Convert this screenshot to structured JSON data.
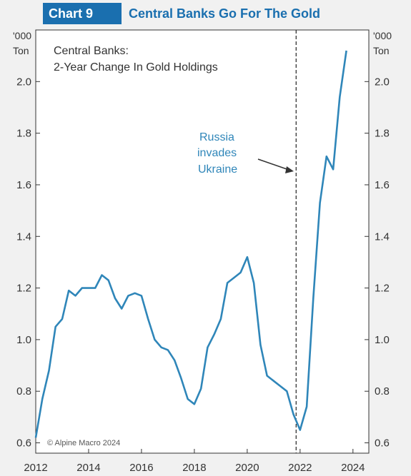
{
  "header": {
    "badge": "Chart 9",
    "title": "Central Banks Go For The Gold"
  },
  "colors": {
    "accent": "#1a6faf",
    "line": "#2f86b9",
    "annotation": "#2f86b9"
  },
  "chart_data": {
    "type": "line",
    "title": "Central Banks Go For The Gold",
    "subtitle": [
      "Central Banks:",
      "2-Year Change In Gold Holdings"
    ],
    "unit_left": [
      "'000",
      "Ton"
    ],
    "unit_right": [
      "'000",
      "Ton"
    ],
    "ylim": [
      0.56,
      2.2
    ],
    "xlim": [
      2012,
      2024.6
    ],
    "yticks": [
      0.6,
      0.8,
      1.0,
      1.2,
      1.4,
      1.6,
      1.8,
      2.0
    ],
    "ytick_labels": [
      "0.6",
      "0.8",
      "1.0",
      "1.2",
      "1.4",
      "1.6",
      "1.8",
      "2.0"
    ],
    "xticks": [
      2012,
      2014,
      2016,
      2018,
      2020,
      2022,
      2024
    ],
    "xtick_labels": [
      "2012",
      "2014",
      "2016",
      "2018",
      "2020",
      "2022",
      "2024"
    ],
    "grid": false,
    "series": [
      {
        "x": [
          2012.0,
          2012.25,
          2012.5,
          2012.75,
          2013.0,
          2013.25,
          2013.5,
          2013.75,
          2014.0,
          2014.25,
          2014.5,
          2014.75,
          2015.0,
          2015.25,
          2015.5,
          2015.75,
          2016.0,
          2016.25,
          2016.5,
          2016.75,
          2017.0,
          2017.25,
          2017.5,
          2017.75,
          2018.0,
          2018.25,
          2018.5,
          2018.75,
          2019.0,
          2019.25,
          2019.5,
          2019.75,
          2020.0,
          2020.25,
          2020.5,
          2020.75,
          2021.0,
          2021.25,
          2021.5,
          2021.75,
          2022.0,
          2022.25,
          2022.5,
          2022.75,
          2023.0,
          2023.25,
          2023.5,
          2023.75
        ],
        "values": [
          0.62,
          0.77,
          0.88,
          1.05,
          1.08,
          1.19,
          1.17,
          1.2,
          1.2,
          1.2,
          1.25,
          1.23,
          1.16,
          1.12,
          1.17,
          1.18,
          1.17,
          1.08,
          1.0,
          0.97,
          0.96,
          0.92,
          0.85,
          0.77,
          0.75,
          0.81,
          0.97,
          1.02,
          1.08,
          1.22,
          1.24,
          1.26,
          1.32,
          1.22,
          0.98,
          0.86,
          0.84,
          0.82,
          0.8,
          0.71,
          0.65,
          0.74,
          1.16,
          1.53,
          1.71,
          1.66,
          1.94,
          2.12
        ]
      }
    ],
    "event": {
      "x": 2021.85,
      "label": [
        "Russia",
        "invades",
        "Ukraine"
      ]
    },
    "credit": "© Alpine Macro 2024"
  }
}
